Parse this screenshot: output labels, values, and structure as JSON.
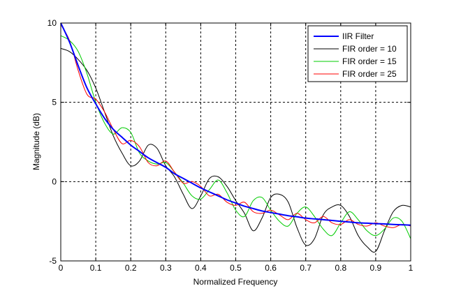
{
  "chart_data": {
    "type": "line",
    "title": "",
    "xlabel": "Normalized Frequency",
    "ylabel": "Magnitude (dB)",
    "xlim": [
      0,
      1
    ],
    "ylim": [
      -5,
      10
    ],
    "x_ticks": [
      "0",
      "0.1",
      "0.2",
      "0.3",
      "0.4",
      "0.5",
      "0.6",
      "0.7",
      "0.8",
      "0.9",
      "1"
    ],
    "y_ticks": [
      "-5",
      "0",
      "5",
      "10"
    ],
    "grid": true,
    "legend_position": "top-right",
    "x": [
      0,
      0.025,
      0.05,
      0.075,
      0.1,
      0.125,
      0.15,
      0.175,
      0.2,
      0.225,
      0.25,
      0.275,
      0.3,
      0.325,
      0.35,
      0.375,
      0.4,
      0.425,
      0.45,
      0.475,
      0.5,
      0.525,
      0.55,
      0.575,
      0.6,
      0.625,
      0.65,
      0.675,
      0.7,
      0.725,
      0.75,
      0.775,
      0.8,
      0.825,
      0.85,
      0.875,
      0.9,
      0.925,
      0.95,
      0.975,
      1
    ],
    "series": [
      {
        "name": "IIR Filter",
        "color": "#0000ff",
        "width": 2,
        "values": [
          10.0,
          8.8,
          7.3,
          5.9,
          4.9,
          4.0,
          3.3,
          2.8,
          2.3,
          1.9,
          1.5,
          1.2,
          0.9,
          0.5,
          0.2,
          -0.1,
          -0.4,
          -0.65,
          -0.9,
          -1.15,
          -1.35,
          -1.55,
          -1.7,
          -1.85,
          -1.95,
          -2.05,
          -2.15,
          -2.22,
          -2.3,
          -2.35,
          -2.4,
          -2.45,
          -2.5,
          -2.55,
          -2.6,
          -2.62,
          -2.65,
          -2.67,
          -2.7,
          -2.72,
          -2.75
        ]
      },
      {
        "name": "FIR order = 10",
        "color": "#000000",
        "width": 1,
        "values": [
          8.4,
          8.2,
          7.7,
          7.0,
          5.9,
          4.4,
          2.9,
          1.8,
          1.0,
          1.3,
          2.3,
          2.1,
          1.0,
          0.3,
          -0.8,
          -1.7,
          -0.9,
          0.2,
          0.3,
          -0.3,
          -1.2,
          -2.0,
          -3.1,
          -2.3,
          -1.0,
          -0.8,
          -1.3,
          -2.9,
          -4.0,
          -3.6,
          -2.1,
          -1.6,
          -1.5,
          -2.2,
          -3.4,
          -4.1,
          -4.4,
          -3.1,
          -1.9,
          -1.5,
          -1.6
        ]
      },
      {
        "name": "FIR order = 15",
        "color": "#00cc00",
        "width": 1,
        "values": [
          9.2,
          8.9,
          8.2,
          6.8,
          5.0,
          3.7,
          3.0,
          3.4,
          3.1,
          1.8,
          1.3,
          1.1,
          1.2,
          0.6,
          -0.1,
          -0.9,
          -1.1,
          -0.5,
          0.1,
          -0.7,
          -1.8,
          -2.2,
          -1.2,
          -1.0,
          -1.8,
          -2.5,
          -2.8,
          -2.0,
          -1.6,
          -2.2,
          -3.0,
          -3.4,
          -2.6,
          -1.9,
          -2.4,
          -3.1,
          -3.4,
          -3.0,
          -2.3,
          -2.5,
          -3.6
        ]
      },
      {
        "name": "FIR order = 25",
        "color": "#ff0000",
        "width": 1,
        "values": [
          9.9,
          8.9,
          7.0,
          5.5,
          5.2,
          4.4,
          3.3,
          2.4,
          2.6,
          2.2,
          1.2,
          1.0,
          1.3,
          0.6,
          -0.1,
          0.0,
          -0.3,
          -0.9,
          -0.8,
          -1.3,
          -1.5,
          -1.3,
          -1.9,
          -2.0,
          -1.8,
          -2.1,
          -2.4,
          -2.0,
          -2.4,
          -2.6,
          -2.2,
          -2.6,
          -2.7,
          -2.4,
          -2.7,
          -2.8,
          -2.6,
          -2.8,
          -2.9,
          -2.7,
          -2.8
        ]
      }
    ]
  }
}
